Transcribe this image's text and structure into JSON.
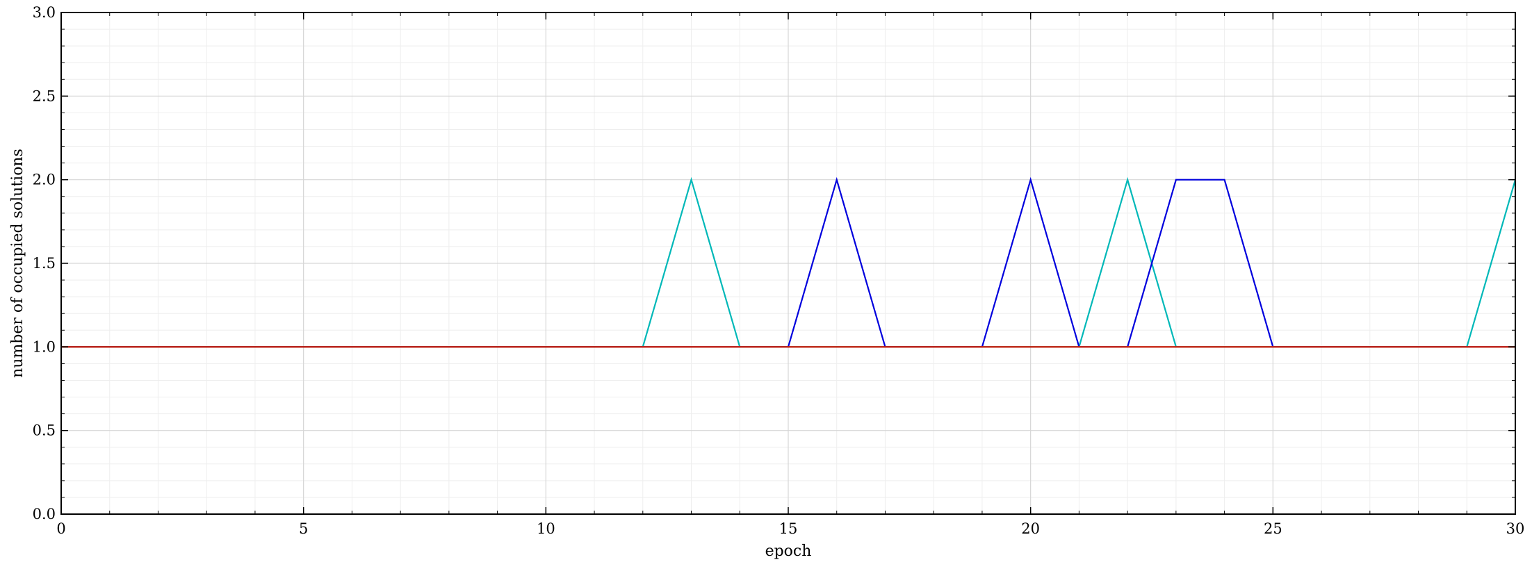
{
  "chart_data": {
    "type": "line",
    "title": "",
    "xlabel": "epoch",
    "ylabel": "number of occupied solutions",
    "xlim": [
      0,
      30
    ],
    "ylim": [
      0.0,
      3.0
    ],
    "x_major_ticks": [
      0,
      5,
      10,
      15,
      20,
      25,
      30
    ],
    "x_tick_labels": [
      "0",
      "5",
      "10",
      "15",
      "20",
      "25",
      "30"
    ],
    "y_major_ticks": [
      0.0,
      0.5,
      1.0,
      1.5,
      2.0,
      2.5,
      3.0
    ],
    "y_tick_labels": [
      "0.0",
      "0.5",
      "1.0",
      "1.5",
      "2.0",
      "2.5",
      "3.0"
    ],
    "x_minor_step": 1,
    "y_minor_step": 0.1,
    "grid": true,
    "legend": "none",
    "x": [
      0,
      1,
      2,
      3,
      4,
      5,
      6,
      7,
      8,
      9,
      10,
      11,
      12,
      13,
      14,
      15,
      16,
      17,
      18,
      19,
      20,
      21,
      22,
      23,
      24,
      25,
      26,
      27,
      28,
      29,
      30
    ],
    "series": [
      {
        "color": "#00b8b8",
        "values": [
          1,
          1,
          1,
          1,
          1,
          1,
          1,
          1,
          1,
          1,
          1,
          1,
          1,
          2,
          1,
          1,
          1,
          1,
          1,
          1,
          1,
          1,
          2,
          1,
          1,
          1,
          1,
          1,
          1,
          1,
          2
        ]
      },
      {
        "color": "#0000dd",
        "values": [
          1,
          1,
          1,
          1,
          1,
          1,
          1,
          1,
          1,
          1,
          1,
          1,
          1,
          1,
          1,
          1,
          2,
          1,
          1,
          1,
          2,
          1,
          1,
          2,
          2,
          1,
          1,
          1,
          1,
          1,
          1
        ]
      },
      {
        "color": "#00aa00",
        "values": [
          1,
          1,
          1,
          1,
          1,
          1,
          1,
          1,
          1,
          1,
          1,
          1,
          1,
          1,
          1,
          1,
          1,
          1,
          1,
          1,
          1,
          1,
          1,
          1,
          1,
          1,
          1,
          1,
          1,
          1,
          1
        ]
      },
      {
        "color": "#dd1111",
        "values": [
          1,
          1,
          1,
          1,
          1,
          1,
          1,
          1,
          1,
          1,
          1,
          1,
          1,
          1,
          1,
          1,
          1,
          1,
          1,
          1,
          1,
          1,
          1,
          1,
          1,
          1,
          1,
          1,
          1,
          1,
          1
        ]
      }
    ]
  }
}
